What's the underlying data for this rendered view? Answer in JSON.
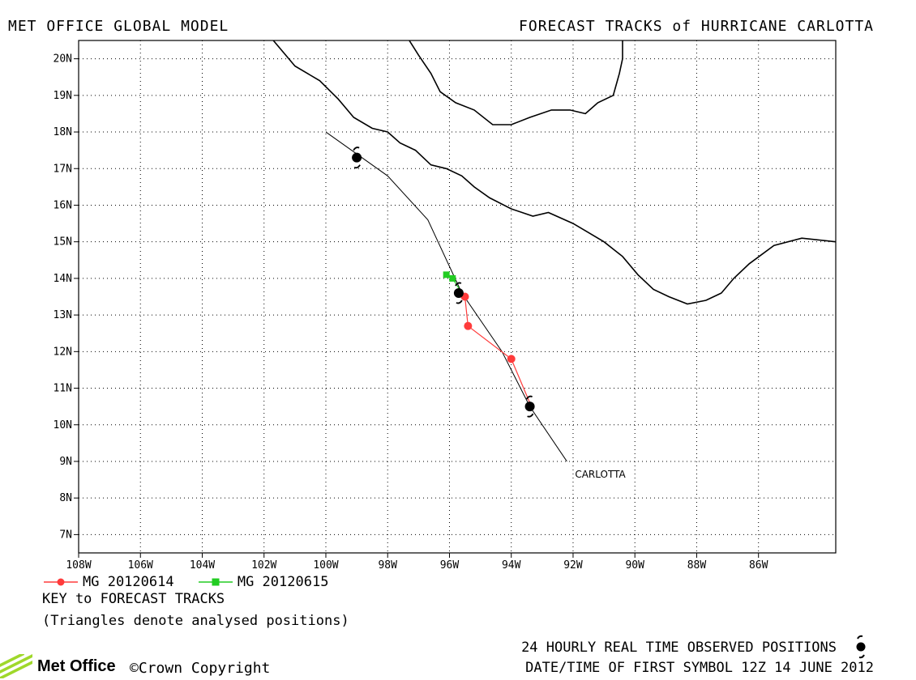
{
  "header": {
    "left": "MET OFFICE GLOBAL MODEL",
    "right": "FORECAST TRACKS of HURRICANE CARLOTTA"
  },
  "axes": {
    "x_ticks": [
      "108W",
      "106W",
      "104W",
      "102W",
      "100W",
      "98W",
      "96W",
      "94W",
      "92W",
      "90W",
      "88W",
      "86W"
    ],
    "y_ticks": [
      "20N",
      "19N",
      "18N",
      "17N",
      "16N",
      "15N",
      "14N",
      "13N",
      "12N",
      "11N",
      "10N",
      "9N",
      "8N",
      "7N"
    ],
    "lon_range": [
      -108,
      -83.5
    ],
    "lat_range": [
      6.5,
      20.5
    ]
  },
  "storm": {
    "name": "CARLOTTA",
    "observed_positions": [
      {
        "lon": -93.4,
        "lat": 10.5
      },
      {
        "lon": -95.7,
        "lat": 13.6
      },
      {
        "lon": -99.0,
        "lat": 17.3
      }
    ],
    "observed_track": [
      {
        "lon": -92.2,
        "lat": 9.0
      },
      {
        "lon": -93.4,
        "lat": 10.5
      },
      {
        "lon": -94.3,
        "lat": 12.0
      },
      {
        "lon": -95.6,
        "lat": 13.6
      },
      {
        "lon": -96.7,
        "lat": 15.6
      },
      {
        "lon": -98.0,
        "lat": 16.8
      },
      {
        "lon": -100.0,
        "lat": 18.0
      }
    ]
  },
  "forecasts": [
    {
      "name": "MG 20120614",
      "color": "#ff3b3b",
      "marker": "circle",
      "points": [
        {
          "lon": -93.4,
          "lat": 10.6
        },
        {
          "lon": -94.0,
          "lat": 11.8
        },
        {
          "lon": -95.4,
          "lat": 12.7
        },
        {
          "lon": -95.5,
          "lat": 13.5
        }
      ]
    },
    {
      "name": "MG 20120615",
      "color": "#22cc22",
      "marker": "square",
      "points": [
        {
          "lon": -95.6,
          "lat": 13.6
        },
        {
          "lon": -95.9,
          "lat": 14.0
        },
        {
          "lon": -96.1,
          "lat": 14.1
        }
      ]
    }
  ],
  "colors": {
    "coast": "#000000",
    "frame": "#000000",
    "observed_track": "#000000"
  },
  "coastlines": [
    [
      [
        -101.7,
        20.5
      ],
      [
        -101.0,
        19.8
      ],
      [
        -100.2,
        19.4
      ],
      [
        -99.6,
        18.9
      ],
      [
        -99.1,
        18.4
      ],
      [
        -98.5,
        18.1
      ],
      [
        -98.0,
        18.0
      ],
      [
        -97.6,
        17.7
      ],
      [
        -97.1,
        17.5
      ],
      [
        -96.6,
        17.1
      ],
      [
        -96.1,
        17.0
      ],
      [
        -95.6,
        16.8
      ],
      [
        -95.2,
        16.5
      ],
      [
        -94.7,
        16.2
      ],
      [
        -94.0,
        15.9
      ],
      [
        -93.3,
        15.7
      ],
      [
        -92.8,
        15.8
      ],
      [
        -92.0,
        15.5
      ],
      [
        -91.6,
        15.3
      ],
      [
        -91.0,
        15.0
      ],
      [
        -90.4,
        14.6
      ],
      [
        -89.9,
        14.1
      ],
      [
        -89.4,
        13.7
      ],
      [
        -88.9,
        13.5
      ],
      [
        -88.3,
        13.3
      ],
      [
        -87.7,
        13.4
      ],
      [
        -87.2,
        13.6
      ],
      [
        -86.8,
        14.0
      ],
      [
        -86.3,
        14.4
      ],
      [
        -85.5,
        14.9
      ],
      [
        -84.6,
        15.1
      ],
      [
        -83.5,
        15.0
      ]
    ],
    [
      [
        -97.3,
        20.5
      ],
      [
        -97.0,
        20.1
      ],
      [
        -96.6,
        19.6
      ],
      [
        -96.3,
        19.1
      ],
      [
        -95.8,
        18.8
      ],
      [
        -95.2,
        18.6
      ],
      [
        -94.6,
        18.2
      ],
      [
        -94.0,
        18.2
      ],
      [
        -93.4,
        18.4
      ],
      [
        -92.7,
        18.6
      ],
      [
        -92.1,
        18.6
      ],
      [
        -91.6,
        18.5
      ],
      [
        -91.2,
        18.8
      ],
      [
        -90.7,
        19.0
      ],
      [
        -90.5,
        19.6
      ],
      [
        -90.4,
        20.0
      ],
      [
        -90.4,
        20.5
      ]
    ]
  ],
  "footer": {
    "legend_title": "KEY to FORECAST TRACKS",
    "legend_note": "(Triangles denote analysed positions)",
    "observed_note": "24 HOURLY REAL TIME OBSERVED POSITIONS",
    "datetime": "DATE/TIME OF FIRST SYMBOL 12Z 14 JUNE 2012",
    "brand": "Met Office",
    "copyright": "Crown Copyright"
  }
}
